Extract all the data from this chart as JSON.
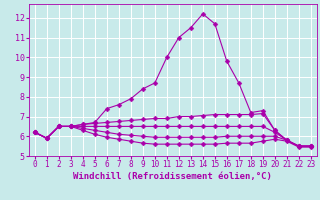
{
  "xlabel": "Windchill (Refroidissement éolien,°C)",
  "bg_color": "#c8eaea",
  "grid_color": "#ffffff",
  "line_color": "#aa00aa",
  "x_values": [
    0,
    1,
    2,
    3,
    4,
    5,
    6,
    7,
    8,
    9,
    10,
    11,
    12,
    13,
    14,
    15,
    16,
    17,
    18,
    19,
    20,
    21,
    22,
    23
  ],
  "lines": [
    [
      6.2,
      5.9,
      6.5,
      6.5,
      6.6,
      6.7,
      7.4,
      7.6,
      7.9,
      8.4,
      8.7,
      10.0,
      11.0,
      11.5,
      12.2,
      11.7,
      9.8,
      8.7,
      7.2,
      7.3,
      6.3,
      5.8,
      5.5,
      5.5
    ],
    [
      6.2,
      5.9,
      6.5,
      6.5,
      6.6,
      6.65,
      6.7,
      6.75,
      6.8,
      6.85,
      6.9,
      6.9,
      7.0,
      7.0,
      7.05,
      7.1,
      7.1,
      7.1,
      7.1,
      7.15,
      6.3,
      5.8,
      5.5,
      5.5
    ],
    [
      6.2,
      5.9,
      6.5,
      6.5,
      6.5,
      6.5,
      6.5,
      6.5,
      6.5,
      6.5,
      6.5,
      6.5,
      6.5,
      6.5,
      6.5,
      6.5,
      6.5,
      6.5,
      6.5,
      6.5,
      6.2,
      5.8,
      5.5,
      5.5
    ],
    [
      6.2,
      5.9,
      6.5,
      6.5,
      6.4,
      6.3,
      6.2,
      6.1,
      6.05,
      6.0,
      5.95,
      5.95,
      5.95,
      5.95,
      5.95,
      5.95,
      6.0,
      6.0,
      6.0,
      6.0,
      6.0,
      5.8,
      5.5,
      5.5
    ],
    [
      6.2,
      5.9,
      6.5,
      6.5,
      6.3,
      6.1,
      5.95,
      5.85,
      5.75,
      5.65,
      5.6,
      5.6,
      5.6,
      5.6,
      5.6,
      5.6,
      5.65,
      5.65,
      5.65,
      5.75,
      5.85,
      5.75,
      5.45,
      5.45
    ]
  ],
  "ylim": [
    5.0,
    12.7
  ],
  "xlim": [
    -0.5,
    23.5
  ],
  "yticks": [
    5,
    6,
    7,
    8,
    9,
    10,
    11,
    12
  ],
  "xticks": [
    0,
    1,
    2,
    3,
    4,
    5,
    6,
    7,
    8,
    9,
    10,
    11,
    12,
    13,
    14,
    15,
    16,
    17,
    18,
    19,
    20,
    21,
    22,
    23
  ],
  "marker": "D",
  "markersize": 2.5,
  "linewidth": 0.8,
  "xlabel_fontsize": 6.5,
  "tick_fontsize": 5.5,
  "tick_color": "#aa00aa",
  "xlabel_color": "#aa00aa",
  "spine_color": "#aa00aa"
}
